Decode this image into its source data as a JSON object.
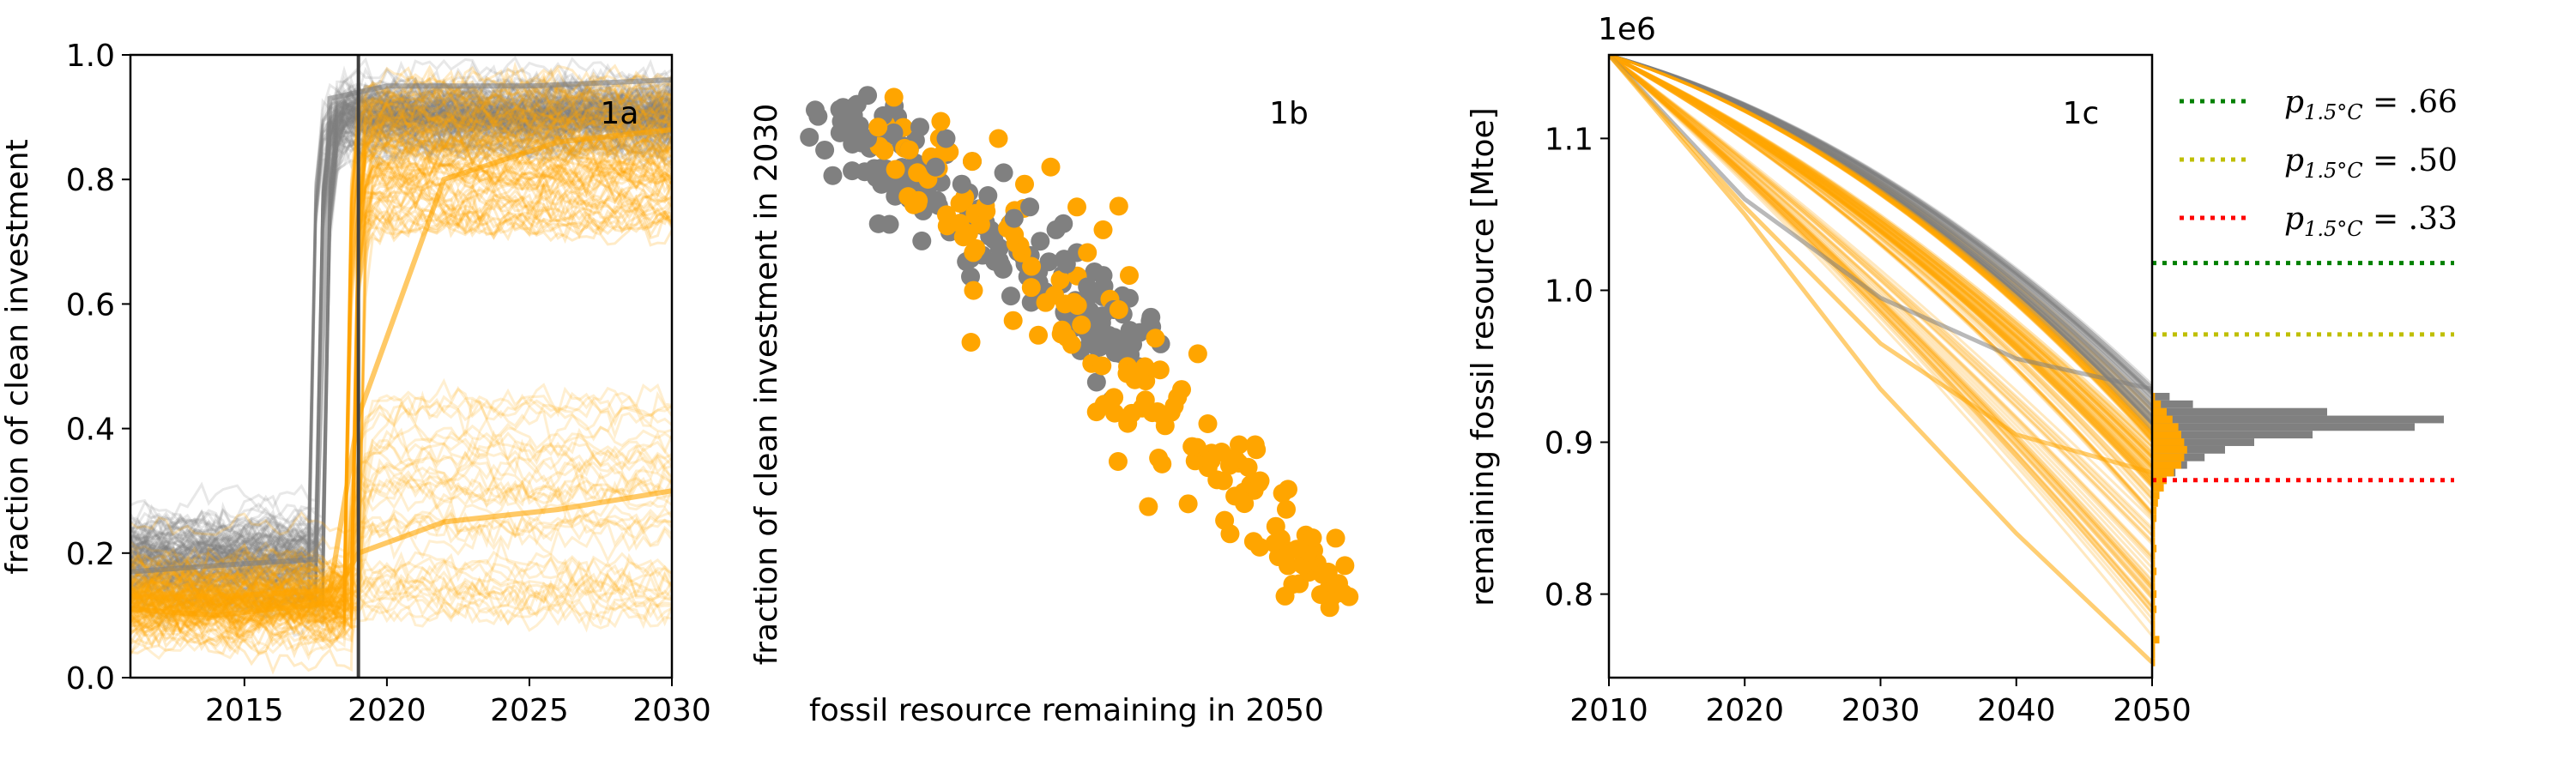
{
  "colors": {
    "gray": "#808080",
    "orange": "#ffa500",
    "green": "#008000",
    "yellow": "#bfbf00",
    "red": "#ff0000",
    "vline": "#404040"
  },
  "chart_data": [
    {
      "id": "1a",
      "type": "line",
      "panel_label": "1a",
      "xlabel": "",
      "ylabel": "fraction of clean investment",
      "xlim": [
        2011,
        2030
      ],
      "ylim": [
        0.0,
        1.0
      ],
      "xticks": [
        "2015",
        "2020",
        "2025",
        "2030"
      ],
      "yticks": [
        "0.0",
        "0.2",
        "0.4",
        "0.6",
        "0.8",
        "1.0"
      ],
      "vertical_line_x": 2019,
      "series": [
        {
          "color": "gray",
          "x": [
            2011,
            2014,
            2017.5,
            2018,
            2020,
            2025,
            2030
          ],
          "y": [
            0.17,
            0.18,
            0.19,
            0.93,
            0.95,
            0.95,
            0.96
          ]
        },
        {
          "color": "orange",
          "x": [
            2011,
            2014,
            2018,
            2019,
            2022,
            2026,
            2030
          ],
          "y": [
            0.13,
            0.13,
            0.14,
            0.42,
            0.8,
            0.86,
            0.88
          ]
        },
        {
          "color": "orange",
          "x": [
            2011,
            2014,
            2018,
            2019,
            2022,
            2026,
            2030
          ],
          "y": [
            0.11,
            0.1,
            0.12,
            0.2,
            0.25,
            0.27,
            0.3
          ]
        }
      ]
    },
    {
      "id": "1b",
      "type": "scatter",
      "panel_label": "1b",
      "xlabel": "fossil resource remaining in 2050",
      "ylabel": "fraction of clean investment in 2030",
      "series": [
        {
          "color": "gray",
          "x": [
            0.0,
            0.05,
            0.08,
            0.1,
            0.13,
            0.15,
            0.18,
            0.2,
            0.23,
            0.25,
            0.28,
            0.3,
            0.33,
            0.36,
            0.38,
            0.41,
            0.43,
            0.46,
            0.48,
            0.5,
            0.52,
            0.55,
            0.57,
            0.6,
            0.62,
            0.64,
            0.66
          ],
          "y": [
            0.95,
            0.93,
            0.96,
            0.9,
            0.94,
            0.91,
            0.88,
            0.92,
            0.85,
            0.9,
            0.82,
            0.86,
            0.8,
            0.84,
            0.76,
            0.78,
            0.72,
            0.74,
            0.68,
            0.7,
            0.64,
            0.66,
            0.6,
            0.62,
            0.56,
            0.58,
            0.54
          ]
        },
        {
          "color": "orange",
          "x": [
            0.12,
            0.18,
            0.24,
            0.3,
            0.35,
            0.4,
            0.45,
            0.5,
            0.52,
            0.55,
            0.58,
            0.6,
            0.63,
            0.65,
            0.68,
            0.7,
            0.72,
            0.75,
            0.78,
            0.8,
            0.82,
            0.85,
            0.88,
            0.9,
            0.92,
            0.95,
            0.98,
            1.0
          ],
          "y": [
            0.92,
            0.88,
            0.93,
            0.86,
            0.9,
            0.82,
            0.85,
            0.78,
            0.7,
            0.74,
            0.6,
            0.66,
            0.5,
            0.55,
            0.42,
            0.46,
            0.36,
            0.4,
            0.3,
            0.34,
            0.26,
            0.3,
            0.22,
            0.25,
            0.18,
            0.2,
            0.14,
            0.12
          ]
        }
      ]
    },
    {
      "id": "1c",
      "type": "line",
      "panel_label": "1c",
      "offset_text": "1e6",
      "xlabel": "",
      "ylabel": "remaining fossil resource [Mtoe]",
      "xlim": [
        2010,
        2050
      ],
      "ylim": [
        0.745,
        1.155
      ],
      "xticks": [
        "2010",
        "2020",
        "2030",
        "2040",
        "2050"
      ],
      "yticks": [
        "0.8",
        "0.9",
        "1.0",
        "1.1"
      ],
      "series": [
        {
          "color": "gray",
          "x": [
            2010,
            2020,
            2030,
            2040,
            2050
          ],
          "y": [
            1.155,
            1.06,
            0.995,
            0.955,
            0.935
          ]
        },
        {
          "color": "orange",
          "x": [
            2010,
            2020,
            2030,
            2040,
            2050
          ],
          "y": [
            1.155,
            1.055,
            0.965,
            0.905,
            0.88
          ]
        },
        {
          "color": "orange",
          "x": [
            2010,
            2020,
            2030,
            2040,
            2050
          ],
          "y": [
            1.155,
            1.05,
            0.935,
            0.84,
            0.755
          ]
        }
      ],
      "thresholds": [
        {
          "label": "p",
          "subscript": "1.5°C",
          "value_text": " = .66",
          "y": 1.018,
          "color": "green"
        },
        {
          "label": "p",
          "subscript": "1.5°C",
          "value_text": " = .50",
          "y": 0.971,
          "color": "yellow"
        },
        {
          "label": "p",
          "subscript": "1.5°C",
          "value_text": " = .33",
          "y": 0.875,
          "color": "red"
        }
      ],
      "histograms": [
        {
          "color": "gray",
          "bins": [
            0.93,
            0.925,
            0.92,
            0.915,
            0.91,
            0.905,
            0.9,
            0.895,
            0.89,
            0.885,
            0.88,
            0.875,
            0.87
          ],
          "counts": [
            6,
            14,
            60,
            100,
            90,
            55,
            35,
            25,
            18,
            12,
            8,
            5,
            3
          ]
        },
        {
          "color": "orange",
          "bins": [
            0.93,
            0.925,
            0.92,
            0.915,
            0.91,
            0.905,
            0.9,
            0.895,
            0.89,
            0.885,
            0.88,
            0.875,
            0.87,
            0.865,
            0.86,
            0.855,
            0.85,
            0.845,
            0.84,
            0.835,
            0.83,
            0.825,
            0.82,
            0.815,
            0.81,
            0.805,
            0.8,
            0.795,
            0.79,
            0.785,
            0.78,
            0.775,
            0.77,
            0.765,
            0.76,
            0.755
          ],
          "counts": [
            2,
            6,
            10,
            14,
            18,
            20,
            22,
            24,
            22,
            20,
            15,
            10,
            8,
            5,
            4,
            3,
            3,
            2,
            2,
            2,
            3,
            2,
            2,
            3,
            2,
            2,
            3,
            2,
            3,
            2,
            2,
            2,
            5,
            2,
            2,
            2
          ]
        }
      ]
    }
  ]
}
